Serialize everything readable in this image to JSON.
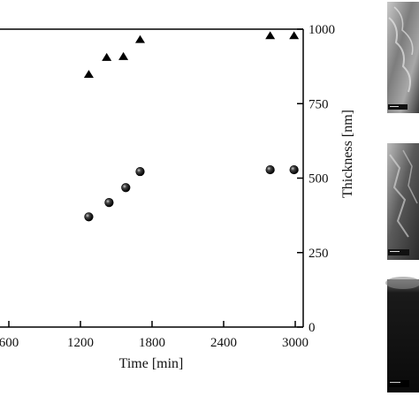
{
  "chart_data": {
    "type": "scatter",
    "xlabel": "Time [min]",
    "ylabel_right": "Thickness [nm]",
    "x_ticks": [
      600,
      1200,
      1800,
      2400,
      3000
    ],
    "x_tick_labels": [
      "600",
      "1200",
      "1800",
      "2400",
      "3000"
    ],
    "y_right_ticks": [
      0,
      250,
      500,
      750,
      1000
    ],
    "y_right_tick_labels": [
      "0",
      "250",
      "500",
      "750",
      "1000"
    ],
    "xlim": [
      360,
      3100
    ],
    "ylim_right": [
      0,
      1000
    ],
    "series": [
      {
        "marker": "triangle",
        "color": "#000000",
        "x": [
          1270,
          1420,
          1560,
          1700,
          2790,
          2990
        ],
        "y": [
          848,
          905,
          908,
          965,
          978,
          978
        ]
      },
      {
        "marker": "sphere",
        "color": "#000000",
        "x": [
          1270,
          1440,
          1580,
          1700,
          2790,
          2990
        ],
        "y": [
          370,
          418,
          468,
          522,
          528,
          528
        ]
      }
    ]
  },
  "images": {
    "panel_top": "sem-micrograph",
    "panel_middle": "sem-micrograph",
    "panel_bottom": "sem-micrograph"
  }
}
